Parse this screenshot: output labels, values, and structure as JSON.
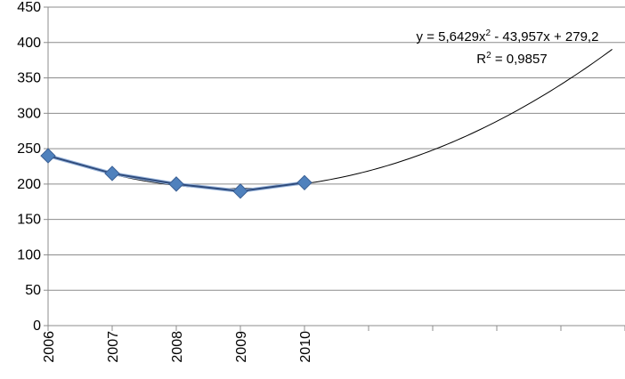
{
  "chart_data": {
    "type": "line",
    "categories": [
      "2006",
      "2007",
      "2008",
      "2009",
      "2010"
    ],
    "series": [
      {
        "values": [
          240,
          215,
          200,
          190,
          202
        ],
        "color": "#4f81bd",
        "marker": "diamond"
      }
    ],
    "trendline": {
      "type": "polynomial",
      "order": 2,
      "coefficients": [
        5.6429,
        -43.957,
        279.2
      ],
      "x_start": 1,
      "x_end": 9.8,
      "color": "#000000",
      "equation_text": "y = 5,6429x",
      "equation_sup": "2",
      "equation_rest": " - 43,957x + 279,2",
      "r2_prefix": "R",
      "r2_sup": "2",
      "r2_rest": " = 0,9857"
    },
    "ylim": [
      0,
      450
    ],
    "yticks": [
      "0",
      "50",
      "100",
      "150",
      "200",
      "250",
      "300",
      "350",
      "400",
      "450"
    ],
    "x_slots": 9,
    "grid": true,
    "title": "",
    "xlabel": "",
    "ylabel": ""
  }
}
